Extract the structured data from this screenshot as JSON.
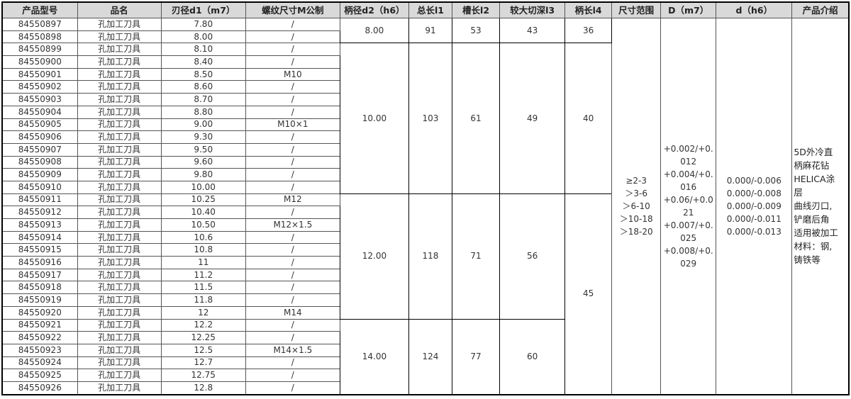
{
  "headers": [
    "产品型号",
    "品名",
    "刃径d1（m7）",
    "螺纹尺寸M公制",
    "柄径d2（h6）",
    "总长l1",
    "槽长l2",
    "较大切深l3",
    "柄长l4",
    "尺寸范围",
    "D（m7）",
    "d（h6）",
    "产品介绍"
  ],
  "rows": [
    {
      "code": "84550897",
      "name": "孔加工刀具",
      "d1": "7.80",
      "thread": "/"
    },
    {
      "code": "84550898",
      "name": "孔加工刀具",
      "d1": "8.00",
      "thread": "/"
    },
    {
      "code": "84550899",
      "name": "孔加工刀具",
      "d1": "8.10",
      "thread": "/"
    },
    {
      "code": "84550900",
      "name": "孔加工刀具",
      "d1": "8.40",
      "thread": "/"
    },
    {
      "code": "84550901",
      "name": "孔加工刀具",
      "d1": "8.50",
      "thread": "M10"
    },
    {
      "code": "84550902",
      "name": "孔加工刀具",
      "d1": "8.60",
      "thread": "/"
    },
    {
      "code": "84550903",
      "name": "孔加工刀具",
      "d1": "8.70",
      "thread": "/"
    },
    {
      "code": "84550904",
      "name": "孔加工刀具",
      "d1": "8.80",
      "thread": "/"
    },
    {
      "code": "84550905",
      "name": "孔加工刀具",
      "d1": "9.00",
      "thread": "M10×1"
    },
    {
      "code": "84550906",
      "name": "孔加工刀具",
      "d1": "9.30",
      "thread": "/"
    },
    {
      "code": "84550907",
      "name": "孔加工刀具",
      "d1": "9.50",
      "thread": "/"
    },
    {
      "code": "84550908",
      "name": "孔加工刀具",
      "d1": "9.60",
      "thread": "/"
    },
    {
      "code": "84550909",
      "name": "孔加工刀具",
      "d1": "9.80",
      "thread": "/"
    },
    {
      "code": "84550910",
      "name": "孔加工刀具",
      "d1": "10.00",
      "thread": "/"
    },
    {
      "code": "84550911",
      "name": "孔加工刀具",
      "d1": "10.25",
      "thread": "M12"
    },
    {
      "code": "84550912",
      "name": "孔加工刀具",
      "d1": "10.40",
      "thread": "/"
    },
    {
      "code": "84550913",
      "name": "孔加工刀具",
      "d1": "10.50",
      "thread": "M12×1.5"
    },
    {
      "code": "84550914",
      "name": "孔加工刀具",
      "d1": "10.6",
      "thread": "/"
    },
    {
      "code": "84550915",
      "name": "孔加工刀具",
      "d1": "10.8",
      "thread": "/"
    },
    {
      "code": "84550916",
      "name": "孔加工刀具",
      "d1": "11",
      "thread": "/"
    },
    {
      "code": "84550917",
      "name": "孔加工刀具",
      "d1": "11.2",
      "thread": "/"
    },
    {
      "code": "84550918",
      "name": "孔加工刀具",
      "d1": "11.5",
      "thread": "/"
    },
    {
      "code": "84550919",
      "name": "孔加工刀具",
      "d1": "11.8",
      "thread": "/"
    },
    {
      "code": "84550920",
      "name": "孔加工刀具",
      "d1": "12",
      "thread": "M14"
    },
    {
      "code": "84550921",
      "name": "孔加工刀具",
      "d1": "12.2",
      "thread": "/"
    },
    {
      "code": "84550922",
      "name": "孔加工刀具",
      "d1": "12.25",
      "thread": "/"
    },
    {
      "code": "84550923",
      "name": "孔加工刀具",
      "d1": "12.5",
      "thread": "M14×1.5"
    },
    {
      "code": "84550924",
      "name": "孔加工刀具",
      "d1": "12.7",
      "thread": "/"
    },
    {
      "code": "84550925",
      "name": "孔加工刀具",
      "d1": "12.75",
      "thread": "/"
    },
    {
      "code": "84550926",
      "name": "孔加工刀具",
      "d1": "12.8",
      "thread": "/"
    }
  ],
  "shank_groups": [
    {
      "d2": "8.00",
      "l1": "91",
      "l2": "53",
      "l3": "43"
    },
    {
      "d2": "10.00",
      "l1": "103",
      "l2": "61",
      "l3": "49"
    },
    {
      "d2": "12.00",
      "l1": "118",
      "l2": "71",
      "l3": "56"
    },
    {
      "d2": "14.00",
      "l1": "124",
      "l2": "77",
      "l3": "60"
    }
  ],
  "l4_groups": [
    "36",
    "40",
    "45"
  ],
  "size_range": [
    "≥2-3",
    "＞3-6",
    "＞6-10",
    "＞10-18",
    "＞18-20"
  ],
  "D_tol": [
    "+0.002/+0.",
    "012",
    "+0.004/+0.",
    "016",
    "+0.06/+0.0",
    "21",
    "+0.007/+0.",
    "025",
    "+0.008/+0.",
    "029"
  ],
  "d_tol": [
    "0.000/-0.006",
    "0.000/-0.008",
    "0.000/-0.009",
    "0.000/-0.011",
    "0.000/-0.013"
  ],
  "intro": [
    "5D外冷直",
    "柄麻花钻",
    "HELICA涂",
    "层",
    "曲线刃口,",
    "铲磨后角",
    "适用被加工",
    "材料：钢,",
    "铸铁等"
  ]
}
